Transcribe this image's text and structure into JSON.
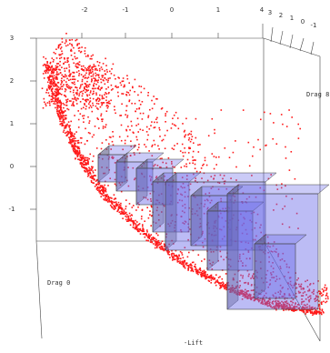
{
  "chart_data": {
    "type": "scatter",
    "projection": "3d",
    "title": "",
    "axes": {
      "x": {
        "label": "",
        "ticks": [
          "-2",
          "-1",
          "0",
          "1"
        ],
        "range": [
          -2.6,
          2.0
        ]
      },
      "z": {
        "label": "",
        "ticks": [
          "3",
          "2",
          "1",
          "0",
          "-1"
        ],
        "range": [
          -1.6,
          3.2
        ]
      },
      "side": {
        "ticks": [
          "4",
          "3",
          "2",
          "1",
          "0",
          "-1"
        ]
      },
      "corner_labels": {
        "right": "Drag 8",
        "left_bottom": "Drag 0",
        "bottom": "-Lift"
      }
    },
    "grid": false,
    "colors": {
      "points": "#ff1a1a",
      "boxes": "#6a6ae8",
      "box_edge": "#444444",
      "frame": "#444444"
    },
    "series": [
      {
        "kind": "points",
        "point_count_approx": 3000,
        "structure": "crescent-shaped point cloud",
        "x_range": [
          -2.6,
          1.7
        ],
        "z_range": [
          -1.6,
          2.6
        ]
      },
      {
        "kind": "translucent-boxes",
        "count": 9,
        "structure": "staircase of translucent blue boxes descending to the right"
      }
    ]
  }
}
